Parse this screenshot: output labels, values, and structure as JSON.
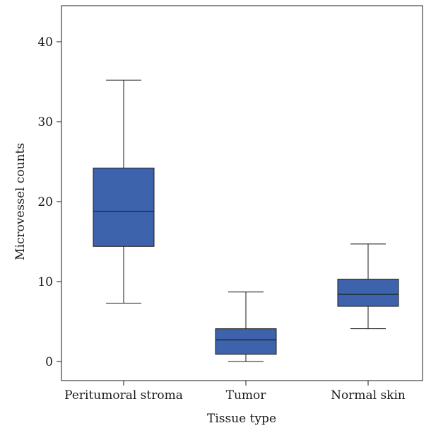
{
  "chart_data": {
    "type": "box",
    "title": "",
    "xlabel": "Tissue type",
    "ylabel": "Microvessel counts",
    "ylim": [
      -2.5,
      44
    ],
    "yticks": [
      0,
      10,
      20,
      30,
      40
    ],
    "grid": false,
    "legend": "none",
    "box_color": "#3d63ad",
    "categories": [
      "Peritumoral stroma",
      "Tumor",
      "Normal skin"
    ],
    "boxes": [
      {
        "category": "Peritumoral stroma",
        "min": 7.3,
        "q1": 14.4,
        "median": 18.8,
        "q3": 24.2,
        "max": 35.2
      },
      {
        "category": "Tumor",
        "min": 0.0,
        "q1": 0.9,
        "median": 2.7,
        "q3": 4.1,
        "max": 8.7
      },
      {
        "category": "Normal skin",
        "min": 4.1,
        "q1": 6.9,
        "median": 8.4,
        "q3": 10.3,
        "max": 14.7
      }
    ]
  }
}
